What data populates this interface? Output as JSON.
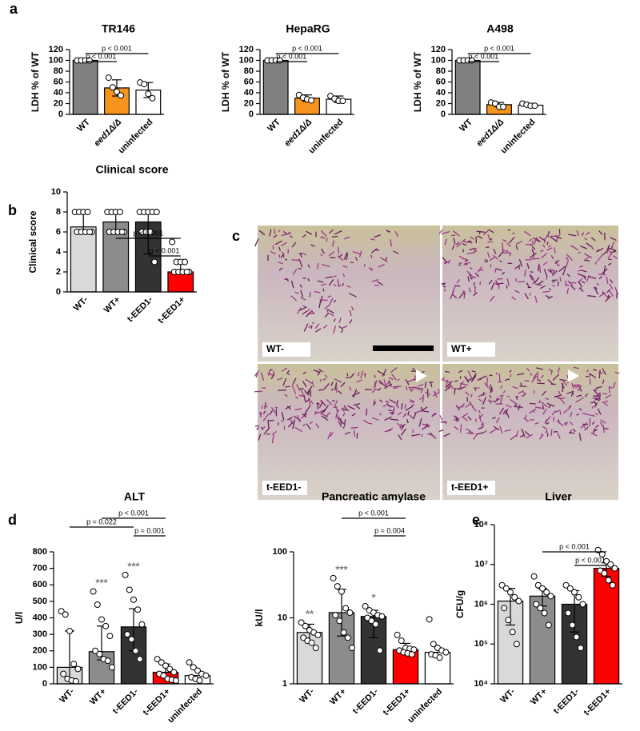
{
  "chart_data": [
    {
      "type": "bar",
      "panel": "a",
      "title": "TR146",
      "y_label": "LDH % of WT",
      "categories": [
        "WT",
        "eed1Δ/Δ",
        "uninfected"
      ],
      "colors": [
        "#808080",
        "#f7941d",
        "#ffffff"
      ],
      "values": [
        100,
        49,
        45
      ],
      "error_low": [
        100,
        34,
        31
      ],
      "error_high": [
        100,
        64,
        59
      ],
      "points": [
        [
          100,
          100,
          100,
          100
        ],
        [
          68,
          50,
          42,
          35
        ],
        [
          59,
          56,
          38,
          30
        ]
      ],
      "ylim": [
        0,
        120
      ],
      "yticks": [
        0,
        20,
        40,
        60,
        80,
        100,
        120
      ],
      "comparisons": [
        "p < 0.001",
        "p < 0.001"
      ]
    },
    {
      "type": "bar",
      "title": "HepaRG",
      "y_label": "LDH % of WT",
      "categories": [
        "WT",
        "eed1Δ/Δ",
        "uninfected"
      ],
      "colors": [
        "#808080",
        "#f7941d",
        "#ffffff"
      ],
      "values": [
        100,
        30,
        28
      ],
      "error_low": [
        100,
        24,
        22
      ],
      "error_high": [
        100,
        36,
        34
      ],
      "points": [
        [
          100,
          100,
          100,
          100
        ],
        [
          36,
          31,
          28,
          26
        ],
        [
          34,
          29,
          25,
          25
        ]
      ],
      "ylim": [
        0,
        120
      ],
      "yticks": [
        0,
        20,
        40,
        60,
        80,
        100,
        120
      ],
      "comparisons": [
        "p < 0.001",
        "p < 0.001"
      ]
    },
    {
      "type": "bar",
      "title": "A498",
      "y_label": "LDH % of WT",
      "categories": [
        "WT",
        "eed1Δ/Δ",
        "uninfected"
      ],
      "colors": [
        "#808080",
        "#f7941d",
        "#ffffff"
      ],
      "values": [
        100,
        18,
        17
      ],
      "error_low": [
        100,
        14,
        15
      ],
      "error_high": [
        100,
        22,
        20
      ],
      "points": [
        [
          100,
          100,
          100,
          100
        ],
        [
          22,
          20,
          14,
          14
        ],
        [
          20,
          18,
          16,
          16
        ]
      ],
      "ylim": [
        0,
        120
      ],
      "yticks": [
        0,
        20,
        40,
        60,
        80,
        100,
        120
      ],
      "comparisons": [
        "p < 0.001",
        "p < 0.001"
      ]
    },
    {
      "type": "bar",
      "panel": "b",
      "title": "Clinical score",
      "y_label": "Clinical score",
      "categories": [
        "WT-",
        "WT+",
        "t-EED1-",
        "t-EED1+"
      ],
      "colors": [
        "#d9d9d9",
        "#8c8c8c",
        "#333333",
        "#ff0000"
      ],
      "values": [
        6.5,
        7,
        7,
        2
      ],
      "error_low": [
        6,
        6,
        3.8,
        2
      ],
      "error_high": [
        8,
        8,
        8,
        3
      ],
      "points": [
        [
          8,
          8,
          8,
          8,
          6,
          6,
          6,
          6,
          6
        ],
        [
          8,
          8,
          8,
          8,
          6,
          6,
          6,
          6,
          6
        ],
        [
          8,
          8,
          8,
          8,
          8,
          6,
          6,
          6,
          3
        ],
        [
          5,
          3,
          3,
          3,
          2,
          2,
          2,
          2,
          2
        ]
      ],
      "ylim": [
        0,
        10
      ],
      "yticks": [
        0,
        2,
        4,
        6,
        8,
        10
      ],
      "comparisons": [
        "p < 0.001",
        "p < 0.001"
      ]
    },
    {
      "type": "bar",
      "panel": "d",
      "title": "ALT",
      "y_label": "U/l",
      "categories": [
        "WT-",
        "WT+",
        "t-EED1-",
        "t-EED1+",
        "uninfected"
      ],
      "colors": [
        "#d9d9d9",
        "#8c8c8c",
        "#333333",
        "#ff0000",
        "#ffffff"
      ],
      "values": [
        100,
        195,
        345,
        70,
        50
      ],
      "error_low": [
        30,
        145,
        200,
        40,
        null
      ],
      "error_high": [
        320,
        350,
        455,
        120,
        null
      ],
      "points": [
        [
          440,
          420,
          320,
          120,
          90,
          60,
          30,
          20,
          15
        ],
        [
          560,
          480,
          390,
          350,
          290,
          200,
          180,
          150,
          140,
          100
        ],
        [
          660,
          570,
          510,
          450,
          360,
          300,
          270,
          200,
          150
        ],
        [
          150,
          130,
          110,
          90,
          70,
          60,
          50,
          30,
          25,
          20
        ],
        [
          130,
          100,
          80,
          60,
          50,
          40,
          30,
          20
        ]
      ],
      "stars": [
        null,
        "***",
        "***",
        null,
        null
      ],
      "ylim": [
        0,
        800
      ],
      "yticks": [
        0,
        100,
        200,
        300,
        400,
        500,
        600,
        700,
        800
      ],
      "comparisons": [
        "p < 0.001",
        "p = 0.022",
        "p = 0.001"
      ]
    },
    {
      "type": "bar",
      "title": "Pancreatic amylase",
      "y_label": "kU/l",
      "log": true,
      "categories": [
        "WT-",
        "WT+",
        "t-EED1-",
        "t-EED1+",
        "uninfected"
      ],
      "colors": [
        "#d9d9d9",
        "#8c8c8c",
        "#333333",
        "#ff0000",
        "#ffffff"
      ],
      "values": [
        6,
        12,
        10.5,
        3.3,
        3
      ],
      "error_low": [
        4.3,
        5.3,
        5,
        2.9,
        null
      ],
      "error_high": [
        8,
        27,
        13,
        4.1,
        null
      ],
      "points": [
        [
          8.5,
          7.5,
          6.5,
          6,
          5.5,
          5,
          4.5,
          4.2,
          3.5
        ],
        [
          40,
          30,
          25,
          14,
          12,
          11,
          9,
          6,
          5,
          3.5
        ],
        [
          15,
          13,
          12,
          11,
          10.5,
          10,
          9,
          8,
          3.2
        ],
        [
          5.5,
          4.5,
          3.5,
          3.4,
          3.3,
          3.2,
          3,
          2.9,
          2.8
        ],
        [
          9.5,
          4,
          3.5,
          3.2,
          3,
          2.8,
          2.7,
          2.5
        ]
      ],
      "stars": [
        "**",
        "***",
        "*",
        null,
        null
      ],
      "ylim": [
        1,
        100
      ],
      "yticks": [
        1,
        10,
        100
      ],
      "comparisons": [
        "p < 0.001",
        "p = 0.004"
      ]
    },
    {
      "type": "bar",
      "panel": "e",
      "title": "Liver",
      "y_label": "CFU/g",
      "log": true,
      "categories": [
        "WT-",
        "WT+",
        "t-EED1-",
        "t-EED1+"
      ],
      "colors": [
        "#d9d9d9",
        "#8c8c8c",
        "#333333",
        "#ff0000"
      ],
      "values": [
        1200000,
        1600000,
        1000000,
        8000000
      ],
      "error_low": [
        300000,
        900000,
        200000,
        5000000
      ],
      "error_high": [
        2500000,
        2500000,
        2200000,
        11000000
      ],
      "points": [
        [
          3000000,
          2500000,
          2000000,
          1500000,
          1200000,
          800000,
          400000,
          200000,
          100000
        ],
        [
          5000000,
          3000000,
          2500000,
          2000000,
          1600000,
          1000000,
          800000,
          600000,
          300000
        ],
        [
          3000000,
          2500000,
          2000000,
          1500000,
          1000000,
          600000,
          300000,
          150000,
          80000
        ],
        [
          23000000,
          18000000,
          12000000,
          10000000,
          8000000,
          7000000,
          6000000,
          4000000,
          3000000
        ]
      ],
      "ylim": [
        10000,
        100000000
      ],
      "yticks": [
        {
          "value": 10000,
          "label": "10⁴"
        },
        {
          "value": 100000,
          "label": "10⁵"
        },
        {
          "value": 1000000,
          "label": "10⁶"
        },
        {
          "value": 10000000,
          "label": "10⁷"
        },
        {
          "value": 100000000,
          "label": "10⁸"
        }
      ],
      "comparisons": [
        "p < 0.001",
        "p < 0.001"
      ]
    }
  ],
  "images": {
    "panel": "c",
    "labels": [
      "WT-",
      "WT+",
      "t-EED1-",
      "t-EED1+"
    ]
  }
}
